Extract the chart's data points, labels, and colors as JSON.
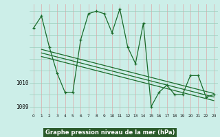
{
  "title": "Graphe pression niveau de la mer (hPa)",
  "bg_color": "#cceee8",
  "grid_v_color": "#ddaaaa",
  "grid_h_color": "#99ccbb",
  "line_color": "#1a6b2a",
  "label_bg": "#2a5a2a",
  "label_fg": "#ffffff",
  "xlim": [
    -0.5,
    23.5
  ],
  "ylim": [
    1008.7,
    1013.3
  ],
  "y_ticks": [
    1009,
    1010
  ],
  "x_ticks": [
    0,
    1,
    2,
    3,
    4,
    5,
    6,
    7,
    8,
    9,
    10,
    11,
    12,
    13,
    14,
    15,
    16,
    17,
    18,
    19,
    20,
    21,
    22,
    23
  ],
  "main_data_x": [
    0,
    1,
    2,
    3,
    4,
    5,
    6,
    7,
    8,
    9,
    10,
    11,
    12,
    13,
    14,
    15,
    16,
    17,
    18,
    19,
    20,
    21,
    22,
    23
  ],
  "main_data_y": [
    1012.3,
    1012.8,
    1011.5,
    1010.4,
    1009.6,
    1009.6,
    1011.8,
    1012.9,
    1013.0,
    1012.9,
    1012.1,
    1013.1,
    1011.5,
    1010.8,
    1012.5,
    1009.0,
    1009.6,
    1009.9,
    1009.5,
    1009.5,
    1010.3,
    1010.3,
    1009.4,
    1009.5
  ],
  "trend_lines": [
    {
      "x": [
        1,
        23
      ],
      "y": [
        1011.4,
        1009.55
      ]
    },
    {
      "x": [
        1,
        23
      ],
      "y": [
        1011.25,
        1009.4
      ]
    },
    {
      "x": [
        1,
        23
      ],
      "y": [
        1011.1,
        1009.25
      ]
    }
  ]
}
